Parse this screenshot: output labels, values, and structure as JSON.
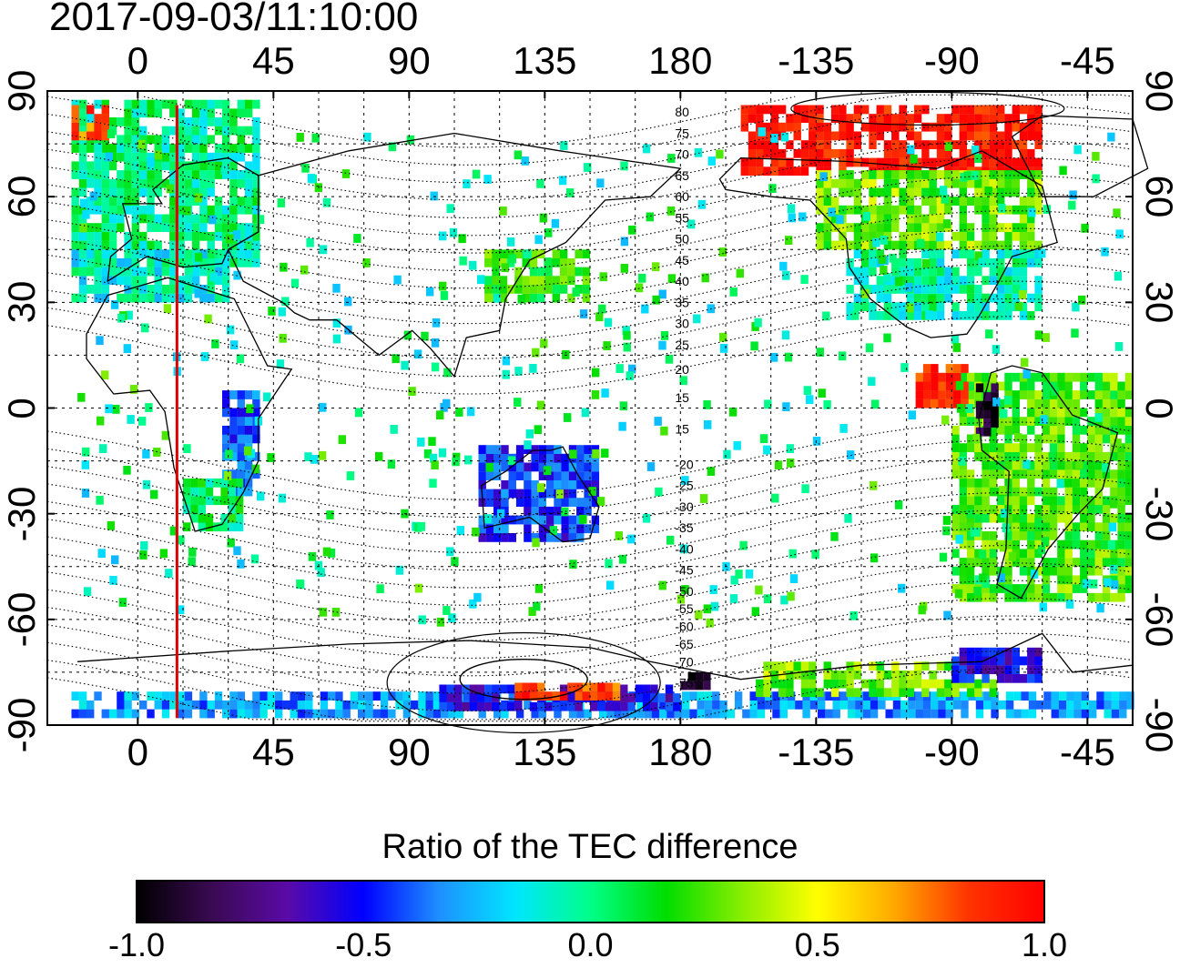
{
  "title": "2017-09-03/11:10:00",
  "map": {
    "lon_range": [
      -30,
      330
    ],
    "lat_range": [
      -90,
      90
    ],
    "top_ticks": [
      {
        "lon": 0,
        "label": "0"
      },
      {
        "lon": 45,
        "label": "45"
      },
      {
        "lon": 90,
        "label": "90"
      },
      {
        "lon": 135,
        "label": "135"
      },
      {
        "lon": 180,
        "label": "180"
      },
      {
        "lon": 225,
        "label": "-135"
      },
      {
        "lon": 270,
        "label": "-90"
      },
      {
        "lon": 315,
        "label": "-45"
      }
    ],
    "bottom_ticks": [
      {
        "lon": 0,
        "label": "0"
      },
      {
        "lon": 45,
        "label": "45"
      },
      {
        "lon": 90,
        "label": "90"
      },
      {
        "lon": 135,
        "label": "135"
      },
      {
        "lon": 180,
        "label": "180"
      },
      {
        "lon": 225,
        "label": "-135"
      },
      {
        "lon": 270,
        "label": "-90"
      },
      {
        "lon": 315,
        "label": "-45"
      }
    ],
    "left_ticks": [
      {
        "lat": 90,
        "label": "90"
      },
      {
        "lat": 60,
        "label": "60"
      },
      {
        "lat": 30,
        "label": "30"
      },
      {
        "lat": 0,
        "label": "0"
      },
      {
        "lat": -30,
        "label": "-30"
      },
      {
        "lat": -60,
        "label": "-60"
      },
      {
        "lat": -90,
        "label": "-90"
      }
    ],
    "right_ticks": [
      {
        "lat": 90,
        "label": "90"
      },
      {
        "lat": 60,
        "label": "60"
      },
      {
        "lat": 30,
        "label": "30"
      },
      {
        "lat": 0,
        "label": "0"
      },
      {
        "lat": -30,
        "label": "-30"
      },
      {
        "lat": -60,
        "label": "-60"
      },
      {
        "lat": -90,
        "label": "-90"
      }
    ],
    "red_line_lon": 13,
    "contour_labels": [
      {
        "lat": 84,
        "label": "80"
      },
      {
        "lat": 78,
        "label": "75"
      },
      {
        "lat": 72,
        "label": "70"
      },
      {
        "lat": 66,
        "label": "65"
      },
      {
        "lat": 60,
        "label": "60"
      },
      {
        "lat": 54,
        "label": "55"
      },
      {
        "lat": 48,
        "label": "50"
      },
      {
        "lat": 42,
        "label": "45"
      },
      {
        "lat": 36,
        "label": "40"
      },
      {
        "lat": 30,
        "label": "35"
      },
      {
        "lat": 24,
        "label": "30"
      },
      {
        "lat": 18,
        "label": "25"
      },
      {
        "lat": 11,
        "label": "20"
      },
      {
        "lat": 3,
        "label": "15"
      },
      {
        "lat": -6,
        "label": "15"
      },
      {
        "lat": -16,
        "label": "-20"
      },
      {
        "lat": -22,
        "label": "-25"
      },
      {
        "lat": -28,
        "label": "-30"
      },
      {
        "lat": -34,
        "label": "-35"
      },
      {
        "lat": -40,
        "label": "-40"
      },
      {
        "lat": -46,
        "label": "-45"
      },
      {
        "lat": -52,
        "label": "-50"
      },
      {
        "lat": -57,
        "label": "-55"
      },
      {
        "lat": -62,
        "label": "-60"
      },
      {
        "lat": -67,
        "label": "-65"
      },
      {
        "lat": -72,
        "label": "-70"
      },
      {
        "lat": -78,
        "label": "-75"
      }
    ],
    "regions": [
      {
        "lon": [
          -22,
          40
        ],
        "lat": [
          40,
          87
        ],
        "v": 0.0
      },
      {
        "lon": [
          -22,
          -10
        ],
        "lat": [
          76,
          86
        ],
        "v": 0.8
      },
      {
        "lon": [
          -22,
          30
        ],
        "lat": [
          30,
          45
        ],
        "v": -0.1
      },
      {
        "lon": [
          28,
          40
        ],
        "lat": [
          -25,
          5
        ],
        "v": -0.4
      },
      {
        "lon": [
          15,
          35
        ],
        "lat": [
          -35,
          -20
        ],
        "v": 0.05
      },
      {
        "lon": [
          113,
          153
        ],
        "lat": [
          -38,
          -12
        ],
        "v": -0.45
      },
      {
        "lon": [
          115,
          148
        ],
        "lat": [
          30,
          45
        ],
        "v": 0.2
      },
      {
        "lon": [
          200,
          300
        ],
        "lat": [
          66,
          86
        ],
        "v": 0.95
      },
      {
        "lon": [
          225,
          300
        ],
        "lat": [
          45,
          66
        ],
        "v": 0.3
      },
      {
        "lon": [
          235,
          300
        ],
        "lat": [
          25,
          45
        ],
        "v": -0.05
      },
      {
        "lon": [
          270,
          330
        ],
        "lat": [
          -55,
          10
        ],
        "v": 0.25
      },
      {
        "lon": [
          278,
          285
        ],
        "lat": [
          -8,
          5
        ],
        "v": -0.9
      },
      {
        "lon": [
          258,
          275
        ],
        "lat": [
          0,
          12
        ],
        "v": 0.9
      },
      {
        "lon": [
          -22,
          330
        ],
        "lat": [
          -88,
          -82
        ],
        "v": -0.3
      },
      {
        "lon": [
          100,
          180
        ],
        "lat": [
          -86,
          -80
        ],
        "v": -0.55
      },
      {
        "lon": [
          125,
          160
        ],
        "lat": [
          -83,
          -80
        ],
        "v": 0.85
      },
      {
        "lon": [
          180,
          190
        ],
        "lat": [
          -80,
          -76
        ],
        "v": -0.95
      },
      {
        "lon": [
          205,
          285
        ],
        "lat": [
          -82,
          -72
        ],
        "v": 0.3
      },
      {
        "lon": [
          270,
          300
        ],
        "lat": [
          -78,
          -70
        ],
        "v": -0.55
      }
    ]
  },
  "colorbar": {
    "title": "Ratio of the TEC difference",
    "min": -1.0,
    "max": 1.0,
    "tick_labels": [
      {
        "value": -1.0,
        "label": "-1.0"
      },
      {
        "value": -0.5,
        "label": "-0.5"
      },
      {
        "value": 0.0,
        "label": "0.0"
      },
      {
        "value": 0.5,
        "label": "0.5"
      },
      {
        "value": 1.0,
        "label": "1.0"
      }
    ],
    "stops": [
      "#000000",
      "#3a0a52",
      "#5a0aa8",
      "#0000ff",
      "#1e90ff",
      "#00e5ff",
      "#00ff88",
      "#00dd00",
      "#88ee00",
      "#ffff00",
      "#ffaa00",
      "#ff3300",
      "#ff0000"
    ]
  }
}
